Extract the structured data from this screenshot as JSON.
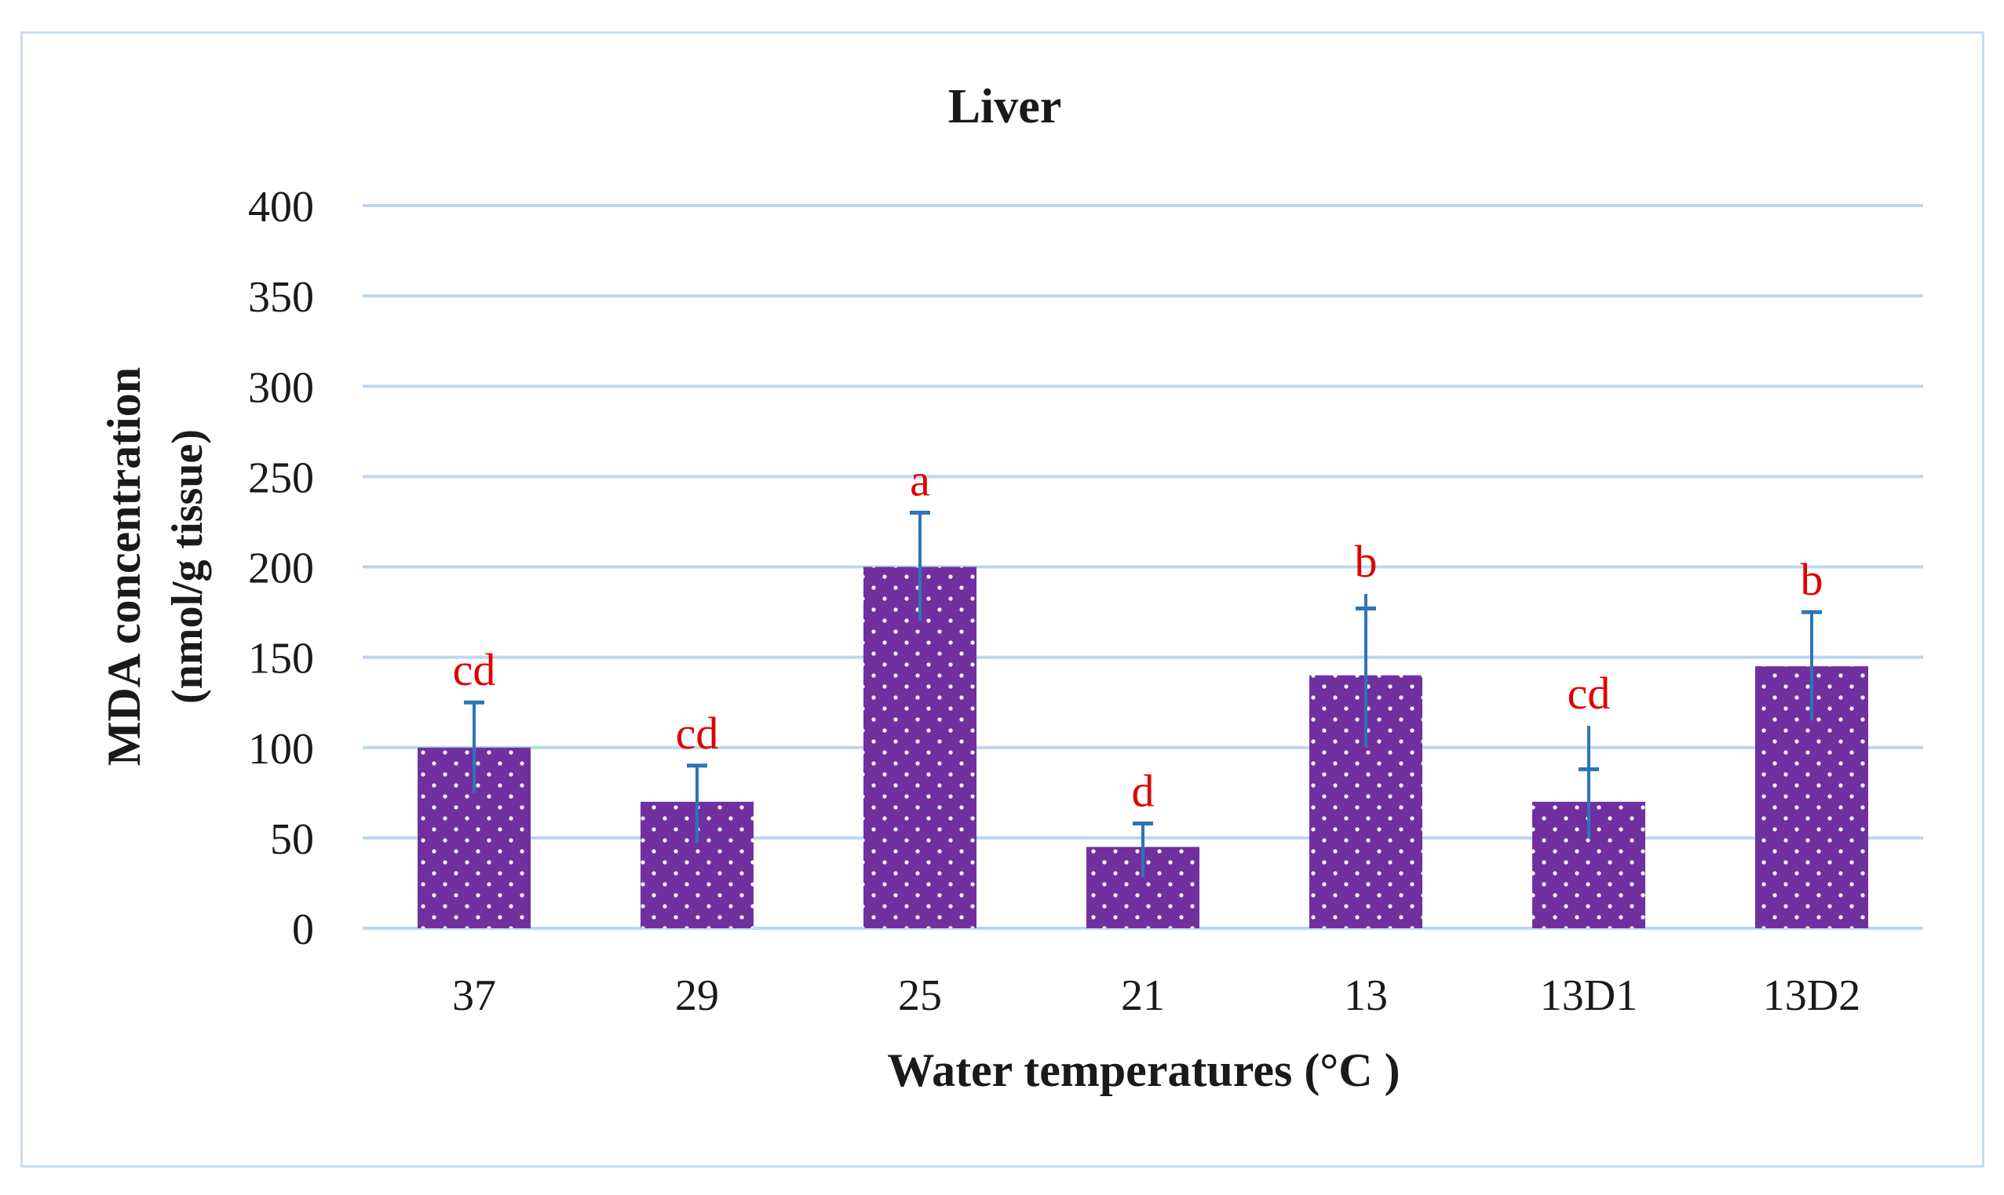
{
  "chart_data": {
    "type": "bar",
    "title": "Liver",
    "xlabel": "Water temperatures (°C )",
    "ylabel_line1": "MDA concentration",
    "ylabel_line2": "(nmol/g tissue)",
    "categories": [
      "37",
      "29",
      "25",
      "21",
      "13",
      "13D1",
      "13D2"
    ],
    "values": [
      100,
      70,
      200,
      45,
      140,
      70,
      145
    ],
    "error_low": [
      75,
      47,
      170,
      28,
      100,
      50,
      115
    ],
    "error_high": [
      125,
      90,
      230,
      58,
      185,
      112,
      175
    ],
    "error_cap": [
      125,
      90,
      230,
      58,
      177,
      88,
      175
    ],
    "significance_letters": [
      "cd",
      "cd",
      "a",
      "d",
      "b",
      "cd",
      "b"
    ],
    "ylim": [
      0,
      400
    ],
    "yticks": [
      0,
      50,
      100,
      150,
      200,
      250,
      300,
      350,
      400
    ],
    "grid": true,
    "bar_pattern": "dotted"
  },
  "colors": {
    "bar": "#7030a0",
    "grid": "#bdd7ee",
    "error_bar": "#2e75b6",
    "letters": "#e00000",
    "text": "#1a1a1a",
    "frame": "#c9dcef"
  }
}
